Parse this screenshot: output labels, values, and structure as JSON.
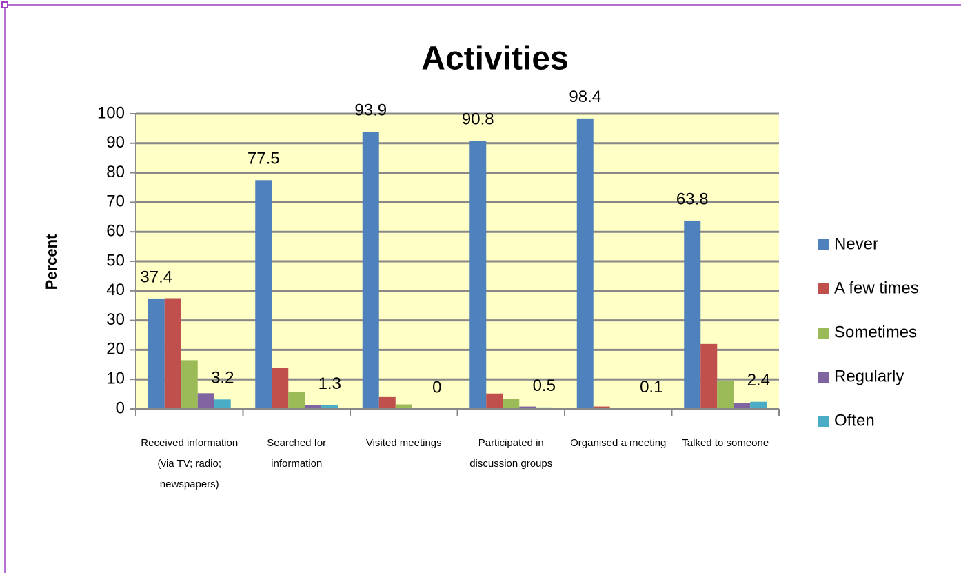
{
  "chart_data": {
    "type": "bar",
    "title": "Activities",
    "y_label": "Percent",
    "categories": [
      "Received information (via TV; radio; newspapers)",
      "Searched for information",
      "Visited meetings",
      "Participated in discussion groups",
      "Organised a meeting",
      "Talked to someone"
    ],
    "series": [
      {
        "name": "Never",
        "color": "#4f81bd",
        "labels": true,
        "values": [
          37.4,
          77.5,
          93.9,
          90.8,
          98.4,
          63.8
        ]
      },
      {
        "name": "A few times",
        "color": "#c0504d",
        "labels": false,
        "values": [
          37.5,
          14,
          4,
          5.2,
          0.8,
          22
        ]
      },
      {
        "name": "Sometimes",
        "color": "#9bbb59",
        "labels": false,
        "values": [
          16.5,
          5.8,
          1.5,
          3.3,
          0.1,
          9.5
        ]
      },
      {
        "name": "Regularly",
        "color": "#8064a2",
        "labels": false,
        "values": [
          5.3,
          1.4,
          0.3,
          0.8,
          0.1,
          2
        ]
      },
      {
        "name": "Often",
        "color": "#4bacc6",
        "labels": true,
        "values": [
          3.2,
          1.3,
          0,
          0.5,
          0.1,
          2.4
        ]
      }
    ],
    "ylim": [
      0,
      100
    ],
    "yticks": [
      0,
      10,
      20,
      30,
      40,
      50,
      60,
      70,
      80,
      90,
      100
    ],
    "grid": true,
    "legend": "right",
    "plot_background": "#ffffc6"
  }
}
